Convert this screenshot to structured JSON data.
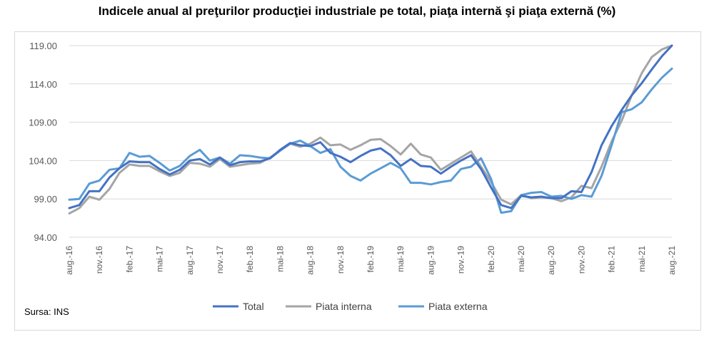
{
  "title": "Indicele anual al preţurilor producţiei industriale pe total, piaţa internă şi piaţa externă (%)",
  "source": "Sursa: INS",
  "chart_data": {
    "type": "line",
    "title": "Indicele anual al preţurilor producţiei industriale pe total, piaţa internă şi piaţa externă (%)",
    "xlabel": "",
    "ylabel": "",
    "ylim": [
      94,
      119
    ],
    "yticks": [
      "94.00",
      "99.00",
      "104.00",
      "109.00",
      "114.00",
      "119.00"
    ],
    "grid": true,
    "legend": "bottom",
    "x": [
      "aug.-16",
      "sep.-16",
      "oct.-16",
      "nov.-16",
      "dec.-16",
      "ian.-17",
      "feb.-17",
      "mar.-17",
      "apr.-17",
      "mai-17",
      "iun.-17",
      "iul.-17",
      "aug.-17",
      "sep.-17",
      "oct.-17",
      "nov.-17",
      "dec.-17",
      "ian.-18",
      "feb.-18",
      "mar.-18",
      "apr.-18",
      "mai-18",
      "iun.-18",
      "iul.-18",
      "aug.-18",
      "sep.-18",
      "oct.-18",
      "nov.-18",
      "dec.-18",
      "ian.-19",
      "feb.-19",
      "mar.-19",
      "apr.-19",
      "mai-19",
      "iun.-19",
      "iul.-19",
      "aug.-19",
      "sep.-19",
      "oct.-19",
      "nov.-19",
      "dec.-19",
      "ian.-20",
      "feb.-20",
      "mar.-20",
      "apr.-20",
      "mai-20",
      "iun.-20",
      "iul.-20",
      "aug.-20",
      "sep.-20",
      "oct.-20",
      "nov.-20",
      "dec.-20",
      "ian.-21",
      "feb.-21",
      "mar.-21",
      "apr.-21",
      "mai-21",
      "iun.-21",
      "iul.-21",
      "aug.-21"
    ],
    "xtick_labels": [
      "aug.-16",
      "nov.-16",
      "feb.-17",
      "mai-17",
      "aug.-17",
      "nov.-17",
      "feb.-18",
      "mai-18",
      "aug.-18",
      "nov.-18",
      "feb.-19",
      "mai-19",
      "aug.-19",
      "nov.-19",
      "feb.-20",
      "mai-20",
      "aug.-20",
      "nov.-20",
      "feb.-21",
      "mai-21",
      "aug.-21"
    ],
    "series": [
      {
        "name": "Total",
        "color": "#4472c4",
        "values": [
          97.8,
          98.2,
          100.0,
          100.0,
          101.8,
          103.0,
          103.9,
          103.8,
          103.8,
          102.9,
          102.2,
          102.8,
          104.0,
          104.2,
          103.5,
          104.4,
          103.4,
          103.8,
          103.9,
          103.9,
          104.3,
          105.4,
          106.3,
          106.0,
          105.9,
          106.4,
          105.0,
          104.5,
          103.8,
          104.6,
          105.3,
          105.6,
          104.7,
          103.3,
          104.2,
          103.3,
          103.2,
          102.3,
          103.2,
          104.0,
          104.7,
          102.9,
          100.5,
          98.2,
          97.8,
          99.4,
          99.2,
          99.3,
          99.1,
          99.1,
          100.0,
          99.9,
          102.5,
          106.0,
          108.5,
          110.6,
          112.5,
          114.1,
          115.9,
          117.6,
          119.0
        ]
      },
      {
        "name": "Piata interna",
        "color": "#a5a5a5",
        "values": [
          97.1,
          97.8,
          99.3,
          98.9,
          100.3,
          102.4,
          103.5,
          103.3,
          103.3,
          102.6,
          102.0,
          102.4,
          103.7,
          103.6,
          103.2,
          104.2,
          103.2,
          103.4,
          103.6,
          103.7,
          104.4,
          105.3,
          106.2,
          105.8,
          106.2,
          107.0,
          106.0,
          106.1,
          105.4,
          106.0,
          106.7,
          106.8,
          105.9,
          104.8,
          106.2,
          104.8,
          104.4,
          102.8,
          103.6,
          104.4,
          105.2,
          103.2,
          101.2,
          98.9,
          98.3,
          99.5,
          99.1,
          99.2,
          99.1,
          98.7,
          99.2,
          100.7,
          100.4,
          103.2,
          106.5,
          109.2,
          112.5,
          115.4,
          117.5,
          118.5,
          119.0
        ]
      },
      {
        "name": "Piata externa",
        "color": "#5b9bd5",
        "values": [
          98.9,
          99.0,
          101.0,
          101.4,
          102.8,
          103.0,
          105.0,
          104.5,
          104.6,
          103.7,
          102.7,
          103.3,
          104.6,
          105.4,
          104.0,
          104.4,
          103.6,
          104.7,
          104.6,
          104.4,
          104.3,
          105.3,
          106.2,
          106.6,
          105.9,
          105.0,
          105.5,
          103.2,
          102.0,
          101.4,
          102.3,
          103.0,
          103.7,
          103.0,
          101.1,
          101.1,
          100.9,
          101.2,
          101.4,
          102.9,
          103.2,
          104.3,
          101.6,
          97.2,
          97.4,
          99.5,
          99.8,
          99.9,
          99.3,
          99.4,
          99.0,
          99.5,
          99.3,
          102.0,
          106.0,
          110.3,
          110.7,
          111.6,
          113.3,
          114.8,
          116.0
        ]
      }
    ]
  }
}
